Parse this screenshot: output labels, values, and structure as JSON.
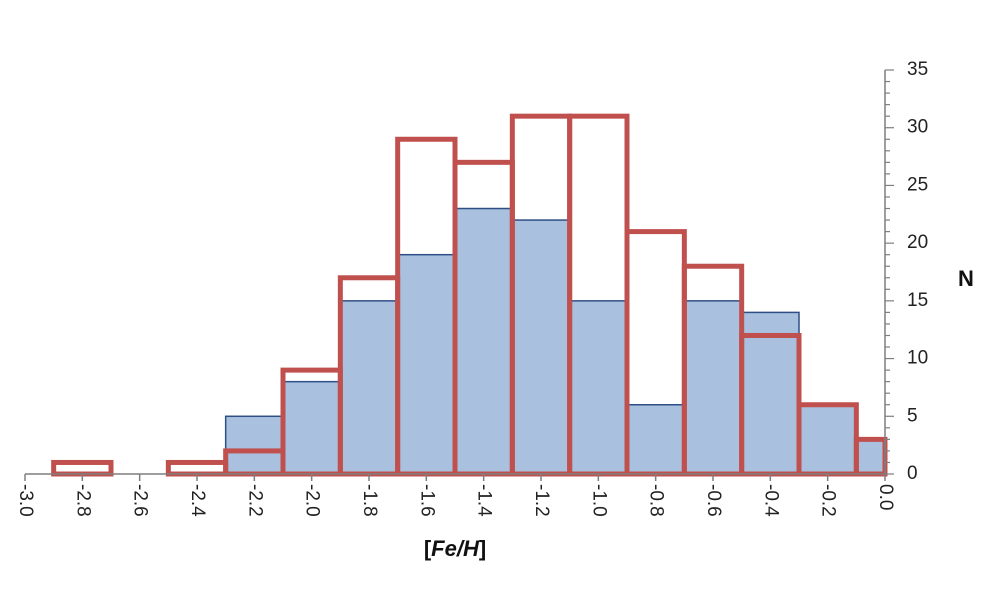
{
  "chart_data": {
    "type": "bar",
    "title": "",
    "xlabel": "[Fe/H]",
    "ylabel": "N",
    "xlim": [
      -3.0,
      0.0
    ],
    "ylim": [
      0,
      35
    ],
    "x_ticks": [
      "-3.0",
      "-2.8",
      "-2.6",
      "-2.4",
      "-2.2",
      "-2.0",
      "-1.8",
      "-1.6",
      "-1.4",
      "-1.2",
      "-1.0",
      "-0.8",
      "-0.6",
      "-0.4",
      "-0.2",
      "0.0"
    ],
    "y_ticks": [
      "0",
      "5",
      "10",
      "15",
      "20",
      "25",
      "30",
      "35"
    ],
    "grid": false,
    "legend": "none",
    "series": [
      {
        "style": "filled",
        "fill_color": "#a9c0de",
        "edge_color": "#2e4f86",
        "bins": [
          {
            "x0": -2.3,
            "x1": -2.1,
            "value": 5
          },
          {
            "x0": -2.1,
            "x1": -1.9,
            "value": 8
          },
          {
            "x0": -1.9,
            "x1": -1.7,
            "value": 15
          },
          {
            "x0": -1.7,
            "x1": -1.5,
            "value": 19
          },
          {
            "x0": -1.5,
            "x1": -1.3,
            "value": 23
          },
          {
            "x0": -1.3,
            "x1": -1.1,
            "value": 22
          },
          {
            "x0": -1.1,
            "x1": -0.9,
            "value": 15
          },
          {
            "x0": -0.9,
            "x1": -0.7,
            "value": 6
          },
          {
            "x0": -0.7,
            "x1": -0.5,
            "value": 15
          },
          {
            "x0": -0.5,
            "x1": -0.3,
            "value": 14
          },
          {
            "x0": -0.3,
            "x1": -0.1,
            "value": 6
          },
          {
            "x0": -0.1,
            "x1": 0.0,
            "value": 3
          }
        ]
      },
      {
        "style": "outline",
        "edge_color": "#c0504d",
        "bins": [
          {
            "x0": -2.9,
            "x1": -2.7,
            "value": 1
          },
          {
            "x0": -2.5,
            "x1": -2.3,
            "value": 1
          },
          {
            "x0": -2.3,
            "x1": -2.1,
            "value": 2
          },
          {
            "x0": -2.1,
            "x1": -1.9,
            "value": 9
          },
          {
            "x0": -1.9,
            "x1": -1.7,
            "value": 17
          },
          {
            "x0": -1.7,
            "x1": -1.5,
            "value": 29
          },
          {
            "x0": -1.5,
            "x1": -1.3,
            "value": 27
          },
          {
            "x0": -1.3,
            "x1": -1.1,
            "value": 31
          },
          {
            "x0": -1.1,
            "x1": -0.9,
            "value": 31
          },
          {
            "x0": -0.9,
            "x1": -0.7,
            "value": 21
          },
          {
            "x0": -0.7,
            "x1": -0.5,
            "value": 18
          },
          {
            "x0": -0.5,
            "x1": -0.3,
            "value": 12
          },
          {
            "x0": -0.3,
            "x1": -0.1,
            "value": 6
          },
          {
            "x0": -0.1,
            "x1": 0.0,
            "value": 3
          }
        ]
      }
    ]
  }
}
